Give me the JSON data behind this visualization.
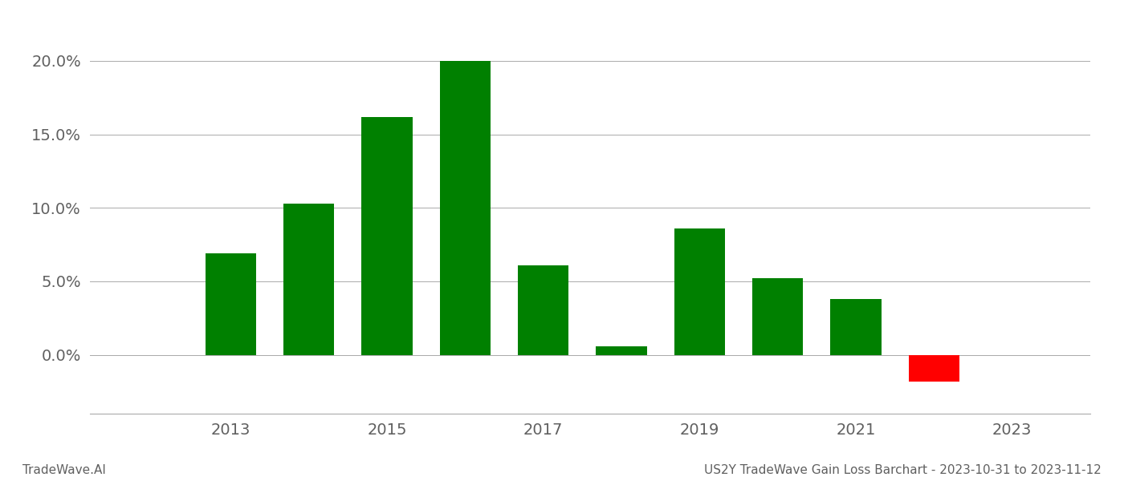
{
  "years": [
    2013,
    2014,
    2015,
    2016,
    2017,
    2018,
    2019,
    2020,
    2021,
    2022
  ],
  "values": [
    0.069,
    0.103,
    0.162,
    0.2,
    0.061,
    0.006,
    0.086,
    0.052,
    0.038,
    -0.018
  ],
  "bar_colors": [
    "#008000",
    "#008000",
    "#008000",
    "#008000",
    "#008000",
    "#008000",
    "#008000",
    "#008000",
    "#008000",
    "#ff0000"
  ],
  "ylim_min": -0.04,
  "ylim_max": 0.225,
  "yticks": [
    0.0,
    0.05,
    0.1,
    0.15,
    0.2
  ],
  "ytick_labels": [
    "0.0%",
    "5.0%",
    "10.0%",
    "15.0%",
    "20.0%"
  ],
  "xtick_labels": [
    "2013",
    "2015",
    "2017",
    "2019",
    "2021",
    "2023"
  ],
  "xtick_positions": [
    2013,
    2015,
    2017,
    2019,
    2021,
    2023
  ],
  "xlim_min": 2011.2,
  "xlim_max": 2024.0,
  "footer_left": "TradeWave.AI",
  "footer_right": "US2Y TradeWave Gain Loss Barchart - 2023-10-31 to 2023-11-12",
  "bar_width": 0.65,
  "background_color": "#ffffff",
  "grid_color": "#aaaaaa",
  "text_color": "#606060",
  "footer_color": "#606060",
  "tick_fontsize": 14,
  "footer_fontsize": 11,
  "fig_width": 14.0,
  "fig_height": 6.0,
  "dpi": 100
}
